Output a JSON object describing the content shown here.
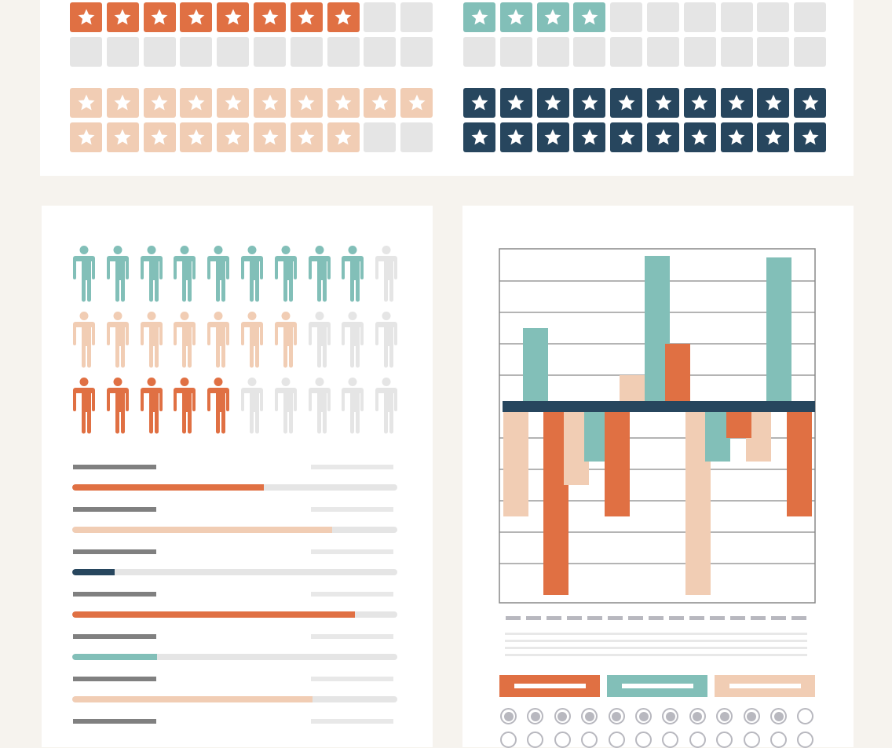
{
  "colors": {
    "orange": "#E07043",
    "teal": "#82BFB8",
    "peach": "#F1CDB4",
    "navy": "#27465E",
    "empty": "#E5E5E5",
    "background": "#F6F3EE"
  },
  "star_ratings": [
    {
      "color": "orange",
      "filled": 8,
      "total": 20
    },
    {
      "color": "teal",
      "filled": 4,
      "total": 20
    },
    {
      "color": "peach",
      "filled": 18,
      "total": 20
    },
    {
      "color": "navy",
      "filled": 20,
      "total": 20
    }
  ],
  "people_rows": [
    {
      "color": "teal",
      "filled": 9,
      "total": 10
    },
    {
      "color": "peach",
      "filled": 7,
      "total": 10
    },
    {
      "color": "orange",
      "filled": 5,
      "total": 10
    }
  ],
  "progress_bars": [
    {
      "color": "orange",
      "value": 0.59
    },
    {
      "color": "peach",
      "value": 0.8
    },
    {
      "color": "navy",
      "value": 0.13
    },
    {
      "color": "orange",
      "value": 0.87
    },
    {
      "color": "teal",
      "value": 0.26
    },
    {
      "color": "peach",
      "value": 0.74
    }
  ],
  "chart_data": {
    "type": "bar",
    "title": "",
    "xlabel": "",
    "ylabel": "",
    "ylim": [
      -6.25,
      5
    ],
    "grid": true,
    "bars": [
      {
        "color": "peach",
        "value": -3.5
      },
      {
        "color": "teal",
        "value": 2.5
      },
      {
        "color": "orange",
        "value": -6
      },
      {
        "color": "peach",
        "value": -2.5
      },
      {
        "color": "teal",
        "value": -1.75
      },
      {
        "color": "orange",
        "value": -3.5
      },
      {
        "color": "peach",
        "value": 1
      },
      {
        "color": "teal",
        "value": 4.8
      },
      {
        "color": "orange",
        "value": 2
      },
      {
        "color": "peach",
        "value": -6
      },
      {
        "color": "teal",
        "value": -1.75
      },
      {
        "color": "orange",
        "value": -1
      },
      {
        "color": "peach",
        "value": -1.75
      },
      {
        "color": "teal",
        "value": 4.75
      },
      {
        "color": "orange",
        "value": -3.5
      }
    ]
  },
  "legend_buttons": [
    {
      "color": "orange"
    },
    {
      "color": "teal"
    },
    {
      "color": "peach"
    }
  ],
  "radio_rows": [
    [
      true,
      true,
      true,
      true,
      true,
      true,
      true,
      true,
      true,
      true,
      true,
      false
    ],
    [
      false,
      false,
      false,
      false,
      false,
      false,
      false,
      false,
      false,
      false,
      false,
      false
    ]
  ]
}
